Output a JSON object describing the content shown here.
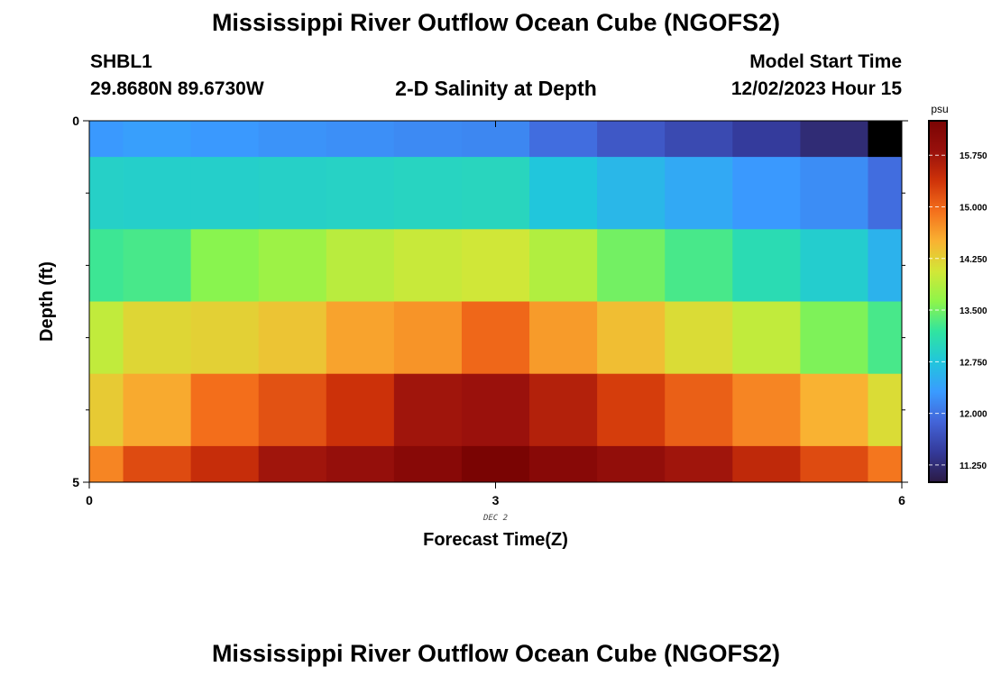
{
  "page": {
    "title_top": "Mississippi River Outflow Ocean Cube (NGOFS2)",
    "title_bottom": "Mississippi River Outflow Ocean Cube (NGOFS2)",
    "station_id": "SHBL1",
    "station_coords": "29.8680N  89.6730W",
    "subtitle": "2-D Salinity at Depth",
    "model_start_label": "Model Start Time",
    "model_start_value": "12/02/2023 Hour 15"
  },
  "chart_data": {
    "type": "heatmap",
    "title": "2-D Salinity at Depth",
    "xlabel": "Forecast Time(Z)",
    "ylabel": "Depth (ft)",
    "xlim": [
      0,
      6
    ],
    "ylim": [
      0,
      5
    ],
    "y_inverted": true,
    "x_ticks": [
      "0",
      "3",
      "6"
    ],
    "y_ticks": [
      "0",
      "5"
    ],
    "x_sublabel": "DEC 2",
    "colorbar": {
      "unit": "psu",
      "range": [
        11.0,
        16.25
      ],
      "ticks": [
        "15.750",
        "15.000",
        "14.250",
        "13.500",
        "12.750",
        "12.000",
        "11.250"
      ],
      "tick_values": [
        15.75,
        15.0,
        14.25,
        13.5,
        12.75,
        12.0,
        11.25
      ],
      "colors": [
        "#2b1a44",
        "#343a9a",
        "#4364d8",
        "#3a9bff",
        "#21c6dc",
        "#30e4a0",
        "#8ef54a",
        "#d2e737",
        "#f9b232",
        "#f4701c",
        "#cf3309",
        "#98100c",
        "#7a0403"
      ]
    },
    "grid": {
      "x_centers": [
        0,
        0.5,
        1,
        1.5,
        2,
        2.5,
        3,
        3.5,
        4,
        4.5,
        5,
        5.5,
        6
      ],
      "y_edges": [
        0,
        0.25,
        0.75,
        1.25,
        1.75,
        2.25,
        2.5
      ],
      "y_scale": 2,
      "values": [
        [
          12.3,
          12.35,
          12.3,
          12.25,
          12.22,
          12.18,
          12.15,
          11.95,
          11.75,
          11.6,
          11.45,
          11.25,
          10.8
        ],
        [
          12.9,
          12.88,
          12.88,
          12.9,
          12.92,
          12.95,
          12.97,
          12.75,
          12.6,
          12.45,
          12.3,
          12.2,
          11.95
        ],
        [
          13.25,
          13.3,
          13.6,
          13.72,
          13.9,
          14.0,
          14.05,
          13.85,
          13.5,
          13.3,
          13.05,
          12.85,
          12.55
        ],
        [
          13.95,
          14.2,
          14.25,
          14.35,
          14.6,
          14.7,
          15.0,
          14.65,
          14.4,
          14.15,
          13.95,
          13.55,
          13.3
        ],
        [
          14.3,
          14.55,
          14.95,
          15.15,
          15.4,
          15.75,
          15.8,
          15.6,
          15.3,
          15.05,
          14.8,
          14.5,
          14.15
        ],
        [
          14.8,
          15.2,
          15.45,
          15.75,
          15.85,
          16.05,
          16.25,
          16.05,
          15.9,
          15.75,
          15.5,
          15.2,
          14.9
        ]
      ]
    }
  }
}
